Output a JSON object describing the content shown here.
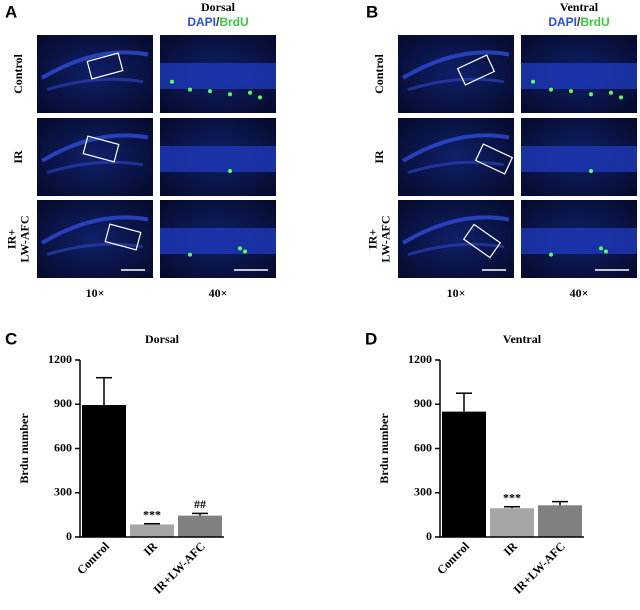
{
  "panels": [
    {
      "letter": "A",
      "region": "Dorsal",
      "stain": [
        "DAPI",
        "/",
        "BrdU"
      ],
      "row_labels": [
        [
          "Control"
        ],
        [
          "IR"
        ],
        [
          "IR+",
          "LW-AFC"
        ]
      ],
      "column_labels": [
        "10×",
        "40×"
      ]
    },
    {
      "letter": "B",
      "region": "Ventral",
      "stain": [
        "DAPI",
        "/",
        "BrdU"
      ],
      "row_labels": [
        [
          "Control"
        ],
        [
          "IR"
        ],
        [
          "IR+",
          "LW-AFC"
        ]
      ],
      "column_labels": [
        "10×",
        "40×"
      ]
    }
  ],
  "chart_data": [
    {
      "type": "bar",
      "letter": "C",
      "title": "Dorsal",
      "y_label": "Brdu number",
      "categories": [
        "Control",
        "IR",
        "IR+LW-AFC"
      ],
      "values": [
        895,
        85,
        145
      ],
      "errors": [
        185,
        5,
        15
      ],
      "colors": [
        "#000000",
        "#a6a6a6",
        "#808080"
      ],
      "annotations": [
        null,
        "***",
        "##"
      ],
      "ylim": [
        0,
        1200
      ],
      "yticks": [
        0,
        300,
        600,
        900,
        1200
      ]
    },
    {
      "type": "bar",
      "letter": "D",
      "title": "Ventral",
      "y_label": "Brdu number",
      "categories": [
        "Control",
        "IR",
        "IR+LW-AFC"
      ],
      "values": [
        850,
        195,
        215
      ],
      "errors": [
        125,
        10,
        25
      ],
      "colors": [
        "#000000",
        "#a6a6a6",
        "#808080"
      ],
      "annotations": [
        null,
        "***",
        null
      ],
      "ylim": [
        0,
        1200
      ],
      "yticks": [
        0,
        300,
        600,
        900,
        1200
      ]
    }
  ]
}
